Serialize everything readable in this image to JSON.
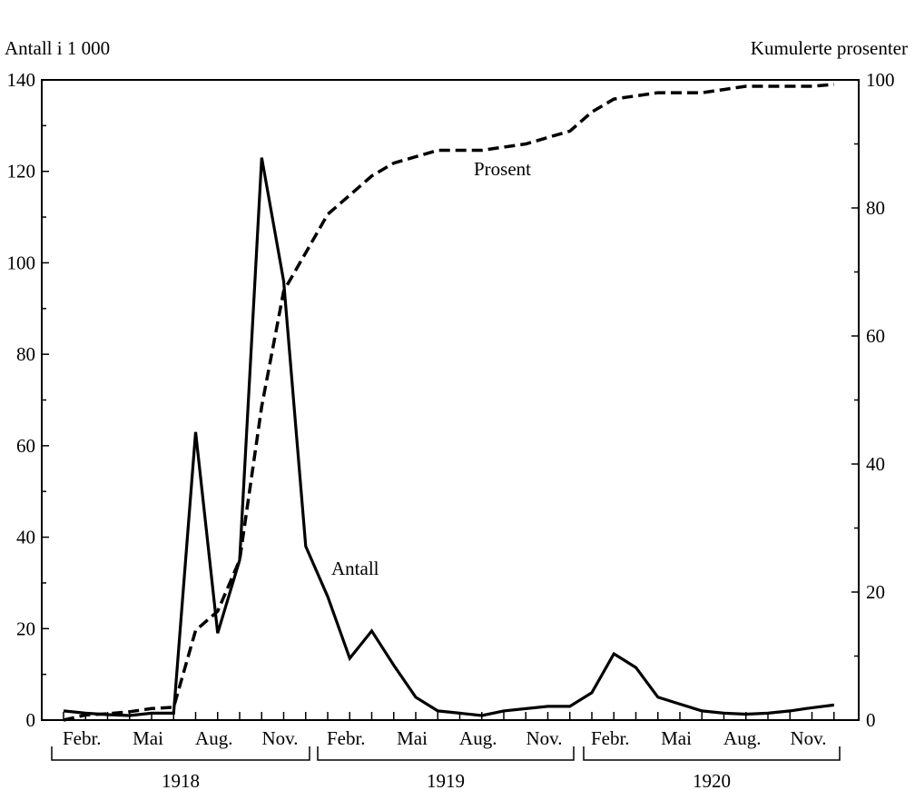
{
  "chart_data": {
    "type": "line",
    "title": "",
    "ylabel_left": "Antall i 1 000",
    "ylabel_right": "Kumulerte prosenter",
    "ylim_left": [
      0,
      140
    ],
    "ylim_right": [
      0,
      100
    ],
    "yticks_left": [
      "0",
      "20",
      "40",
      "60",
      "80",
      "100",
      "120",
      "140"
    ],
    "yticks_right": [
      "0",
      "20",
      "40",
      "60",
      "80",
      "100"
    ],
    "x_month_ticks": [
      "Febr.",
      "Mai",
      "Aug.",
      "Nov.",
      "Febr.",
      "Mai",
      "Aug.",
      "Nov.",
      "Febr.",
      "Mai",
      "Aug.",
      "Nov."
    ],
    "years": [
      "1918",
      "1919",
      "1920"
    ],
    "x": [
      "1918-01",
      "1918-02",
      "1918-03",
      "1918-04",
      "1918-05",
      "1918-06",
      "1918-07",
      "1918-08",
      "1918-09",
      "1918-10",
      "1918-11",
      "1918-12",
      "1919-01",
      "1919-02",
      "1919-03",
      "1919-04",
      "1919-05",
      "1919-06",
      "1919-07",
      "1919-08",
      "1919-09",
      "1919-10",
      "1919-11",
      "1919-12",
      "1920-01",
      "1920-02",
      "1920-03",
      "1920-04",
      "1920-05",
      "1920-06",
      "1920-07",
      "1920-08",
      "1920-09",
      "1920-10",
      "1920-11",
      "1920-12"
    ],
    "grid": false,
    "series": [
      {
        "name": "Antall",
        "axis": "left",
        "style": "solid",
        "values": [
          2,
          1.5,
          1.2,
          1,
          1.5,
          1.5,
          63,
          19,
          35,
          123,
          96,
          38,
          27,
          13.5,
          19.5,
          12,
          5,
          2,
          1.5,
          1,
          2,
          2.5,
          3,
          3,
          6,
          14.5,
          11.5,
          5,
          3.5,
          2,
          1.5,
          1.3,
          1.5,
          2,
          2.7,
          3.3
        ]
      },
      {
        "name": "Prosent",
        "axis": "right",
        "style": "dashed",
        "values": [
          0,
          0.8,
          1,
          1.3,
          1.8,
          2,
          14,
          17,
          25,
          49,
          67,
          73,
          79,
          82,
          85,
          87,
          88,
          89,
          89,
          89,
          89.5,
          90,
          91,
          92,
          95,
          97,
          97.5,
          98,
          98,
          98,
          98.5,
          99,
          99,
          99,
          99,
          99.3
        ]
      }
    ]
  }
}
